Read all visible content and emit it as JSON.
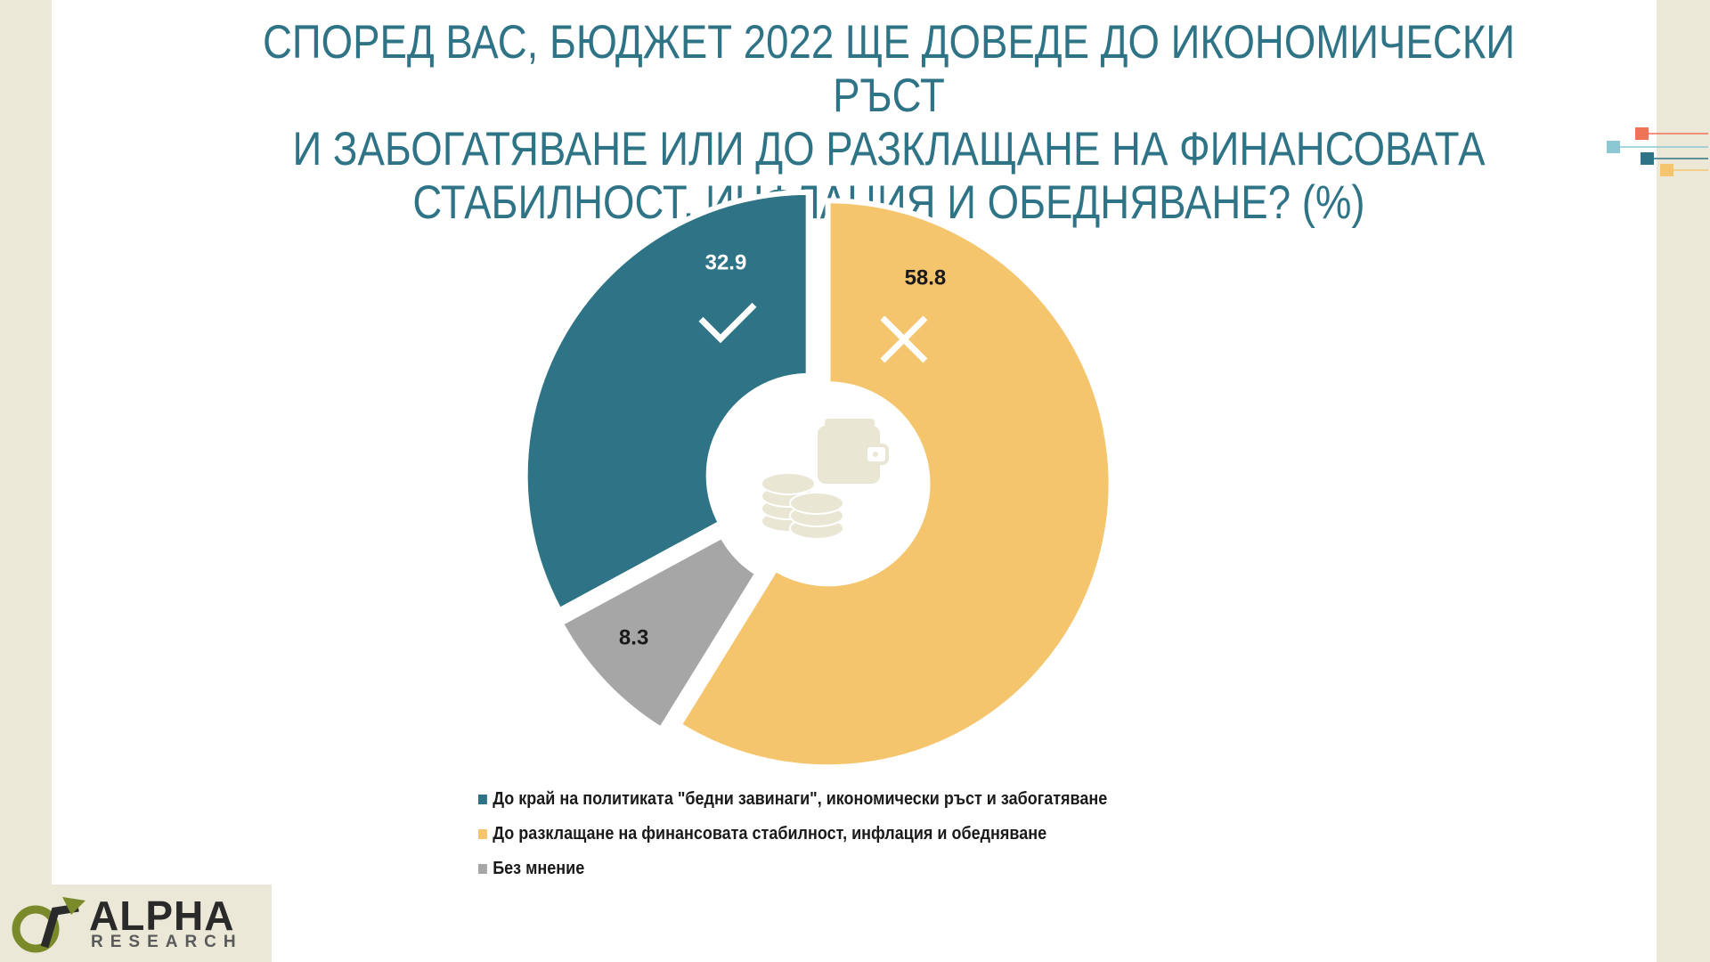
{
  "title_lines": [
    "СПОРЕД ВАС, БЮДЖЕТ 2022 ЩЕ ДОВЕДЕ ДО ИКОНОМИЧЕСКИ РЪСТ",
    "И ЗАБОГАТЯВАНЕ ИЛИ ДО РАЗКЛАЩАНЕ НА ФИНАНСОВАТА",
    "СТАБИЛНОСТ, ИНФЛАЦИЯ И ОБЕДНЯВАНЕ? (%)"
  ],
  "chart_data": {
    "type": "pie",
    "donut": true,
    "title": "СПОРЕД ВАС, БЮДЖЕТ 2022 ЩЕ ДОВЕДЕ ДО ИКОНОМИЧЕСКИ РЪСТ И ЗАБОГАТЯВАНЕ ИЛИ ДО РАЗКЛАЩАНЕ НА ФИНАНСОВАТА СТАБИЛНОСТ, ИНФЛАЦИЯ И ОБЕДНЯВАНЕ? (%)",
    "legend_position": "bottom",
    "slices": [
      {
        "label": "До разклащане на финансовата стабилност, инфлация и обедняване",
        "value": 58.8,
        "value_label": "58.8",
        "color": "#f5c56e",
        "icon": "cross-icon",
        "value_text_color": "#1a1a1a"
      },
      {
        "label": "Без мнение",
        "value": 8.3,
        "value_label": "8.3",
        "color": "#a6a6a6",
        "icon": "",
        "value_text_color": "#1a1a1a"
      },
      {
        "label": "До край на политиката \"бедни завинаги\", икономически ръст и забогатяване",
        "value": 32.9,
        "value_label": "32.9",
        "color": "#2f7486",
        "icon": "checkmark-icon",
        "value_text_color": "#ffffff"
      }
    ],
    "legend": [
      {
        "label": "До край на политиката \"бедни завинаги\", икономически ръст и забогатяване",
        "color": "#2f7486"
      },
      {
        "label": "До разклащане на финансовата стабилност, инфлация и обедняване",
        "color": "#f5c56e"
      },
      {
        "label": "Без мнение",
        "color": "#a6a6a6"
      }
    ],
    "center_icon": "wallet-coins-icon"
  },
  "logo": {
    "main": "ALPHA",
    "sub": "RESEARCH"
  },
  "colors": {
    "title": "#2f7486",
    "frame": "#ebe8d8",
    "icon_light": "#e9e6d3"
  }
}
